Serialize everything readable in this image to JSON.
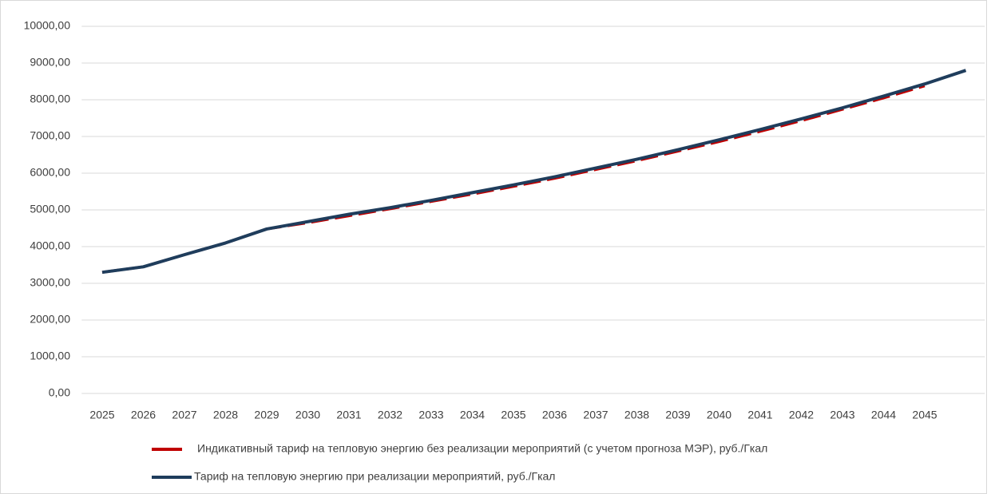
{
  "chart_data": {
    "type": "line",
    "categories": [
      "2025",
      "2026",
      "2027",
      "2028",
      "2029",
      "2030",
      "2031",
      "2032",
      "2033",
      "2034",
      "2035",
      "2036",
      "2037",
      "2038",
      "2039",
      "2040",
      "2041",
      "2042",
      "2043",
      "2044",
      "2045",
      null
    ],
    "series": [
      {
        "name": "Индикативный тариф на тепловую энергию без реализации мероприятий (с учетом прогноза МЭР), руб./Гкал",
        "color": "#c00000",
        "dashed": true,
        "values": [
          3300,
          3450,
          3780,
          4100,
          4480,
          4650,
          4840,
          5030,
          5230,
          5430,
          5640,
          5860,
          6100,
          6340,
          6600,
          6860,
          7140,
          7430,
          7740,
          8050,
          8380,
          null
        ]
      },
      {
        "name": "Тариф на тепловую энергию при реализации мероприятий, руб./Гкал",
        "color": "#1f3d5c",
        "dashed": false,
        "values": [
          3300,
          3450,
          3780,
          4100,
          4480,
          4680,
          4880,
          5060,
          5260,
          5470,
          5680,
          5900,
          6140,
          6380,
          6640,
          6910,
          7190,
          7480,
          7780,
          8100,
          8430,
          8800
        ]
      }
    ],
    "ylim": [
      0,
      10000
    ],
    "yticks": [
      {
        "value": 0,
        "label": "0,00"
      },
      {
        "value": 1000,
        "label": "1000,00"
      },
      {
        "value": 2000,
        "label": "2000,00"
      },
      {
        "value": 3000,
        "label": "3000,00"
      },
      {
        "value": 4000,
        "label": "4000,00"
      },
      {
        "value": 5000,
        "label": "5000,00"
      },
      {
        "value": 6000,
        "label": "6000,00"
      },
      {
        "value": 7000,
        "label": "7000,00"
      },
      {
        "value": 8000,
        "label": "8000,00"
      },
      {
        "value": 9000,
        "label": "9000,00"
      },
      {
        "value": 10000,
        "label": "10000,00"
      }
    ],
    "grid": true
  }
}
